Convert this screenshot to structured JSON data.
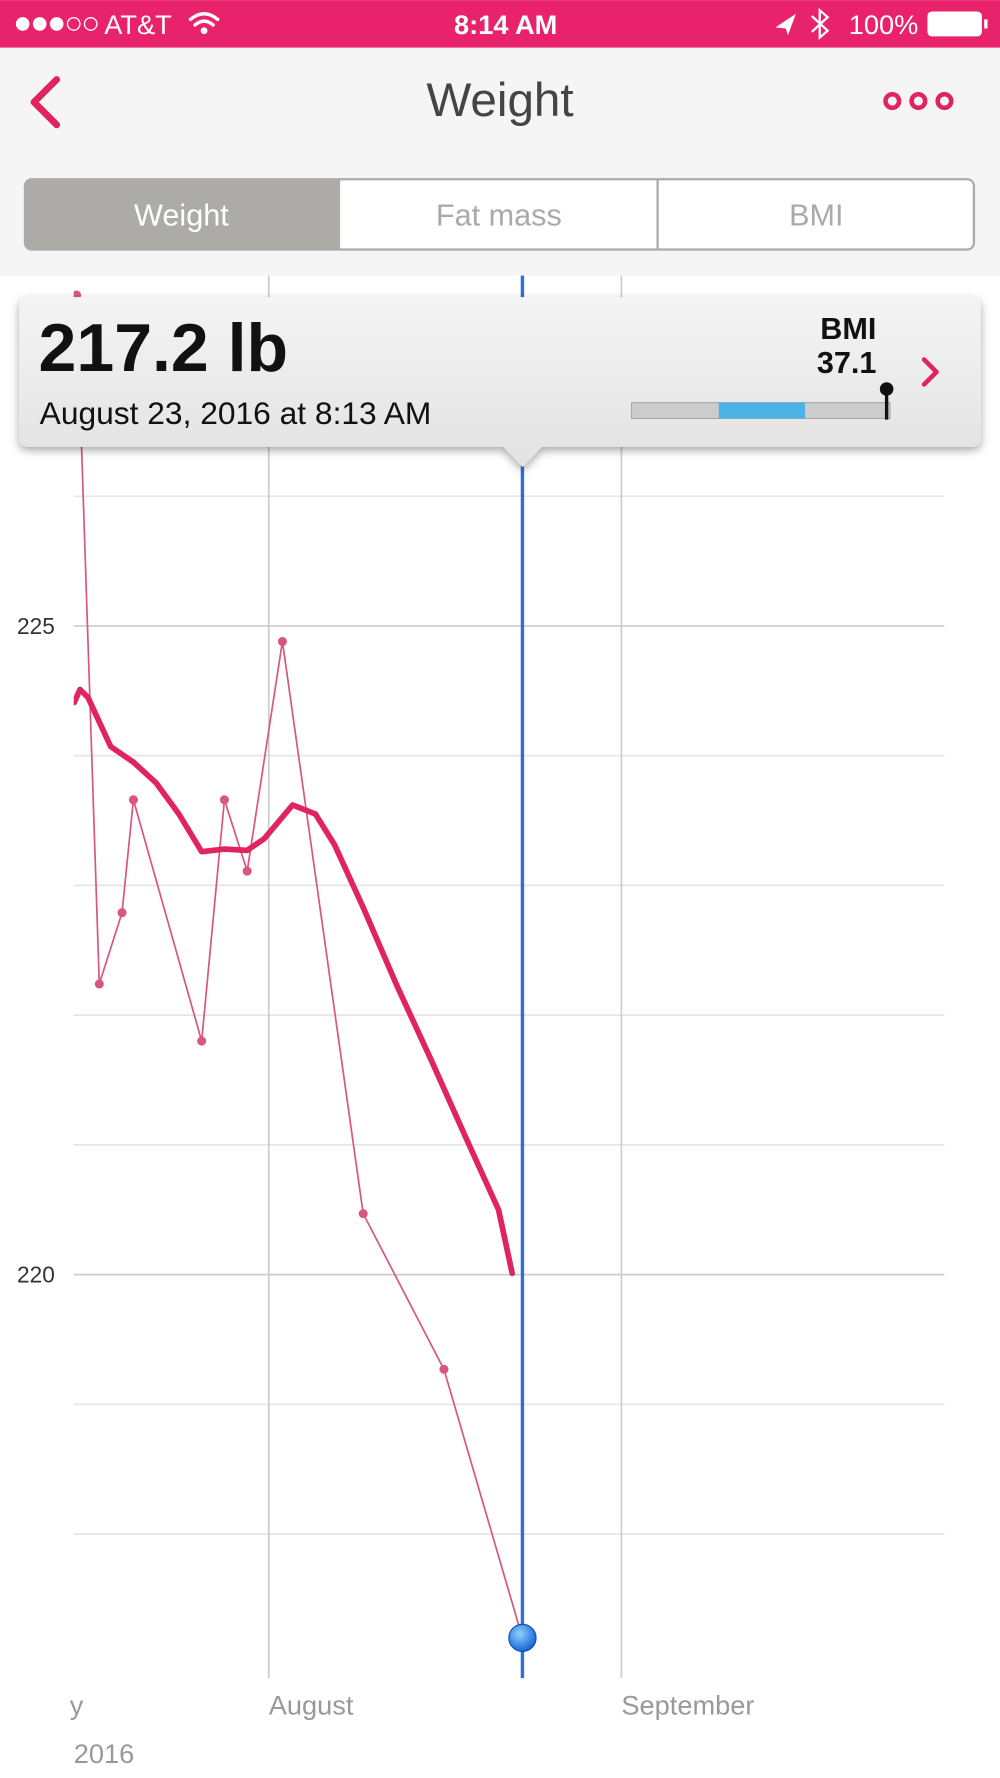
{
  "status_bar": {
    "carrier": "AT&T",
    "time": "8:14 AM",
    "battery": "100%"
  },
  "header": {
    "title": "Weight"
  },
  "tabs": [
    "Weight",
    "Fat mass",
    "BMI"
  ],
  "tooltip": {
    "value_label": "217.2 lb",
    "date": "August 23, 2016 at 8:13 AM",
    "bmi_label": "BMI",
    "bmi_value": "37.1"
  },
  "chart_data": {
    "type": "line",
    "series": [
      {
        "color": "#d9567f",
        "width": 1.5,
        "markers": true,
        "x": [
          -16.9,
          -14.9,
          -12.9,
          -11.9,
          -5.9,
          -3.9,
          -1.9,
          1.2,
          8.3,
          15.4,
          22.3
        ],
        "values": [
          227.55,
          222.24,
          222.79,
          223.66,
          221.8,
          223.66,
          223.11,
          224.88,
          220.47,
          219.27,
          217.2
        ]
      },
      {
        "color": "#e0245e",
        "width": 5,
        "markers": false,
        "x": [
          -17.1,
          -16.6,
          -15.9,
          -13.9,
          -11.9,
          -9.9,
          -7.9,
          -5.9,
          -3.9,
          -1.9,
          -0.4,
          2.1,
          4.1,
          5.8,
          8.3,
          11.3,
          14.3,
          17.2,
          20.2,
          21.4
        ],
        "values": [
          224.41,
          224.51,
          224.45,
          224.07,
          223.95,
          223.79,
          223.55,
          223.26,
          223.28,
          223.27,
          223.36,
          223.62,
          223.55,
          223.31,
          222.83,
          222.22,
          221.65,
          221.08,
          220.5,
          220.01
        ]
      }
    ],
    "xlim": [
      -17.15,
      59.4
    ],
    "xticks": [
      {
        "value": -17.5,
        "label": "y"
      },
      {
        "value": 0,
        "label": "August"
      },
      {
        "value": 31,
        "label": "September"
      }
    ],
    "year_label": "2016",
    "ylim": [
      216.89,
      227.7
    ],
    "yticks": [
      220,
      225
    ],
    "minor_yticks": [
      218,
      219,
      221,
      222,
      223,
      224,
      226
    ],
    "grid": true
  }
}
